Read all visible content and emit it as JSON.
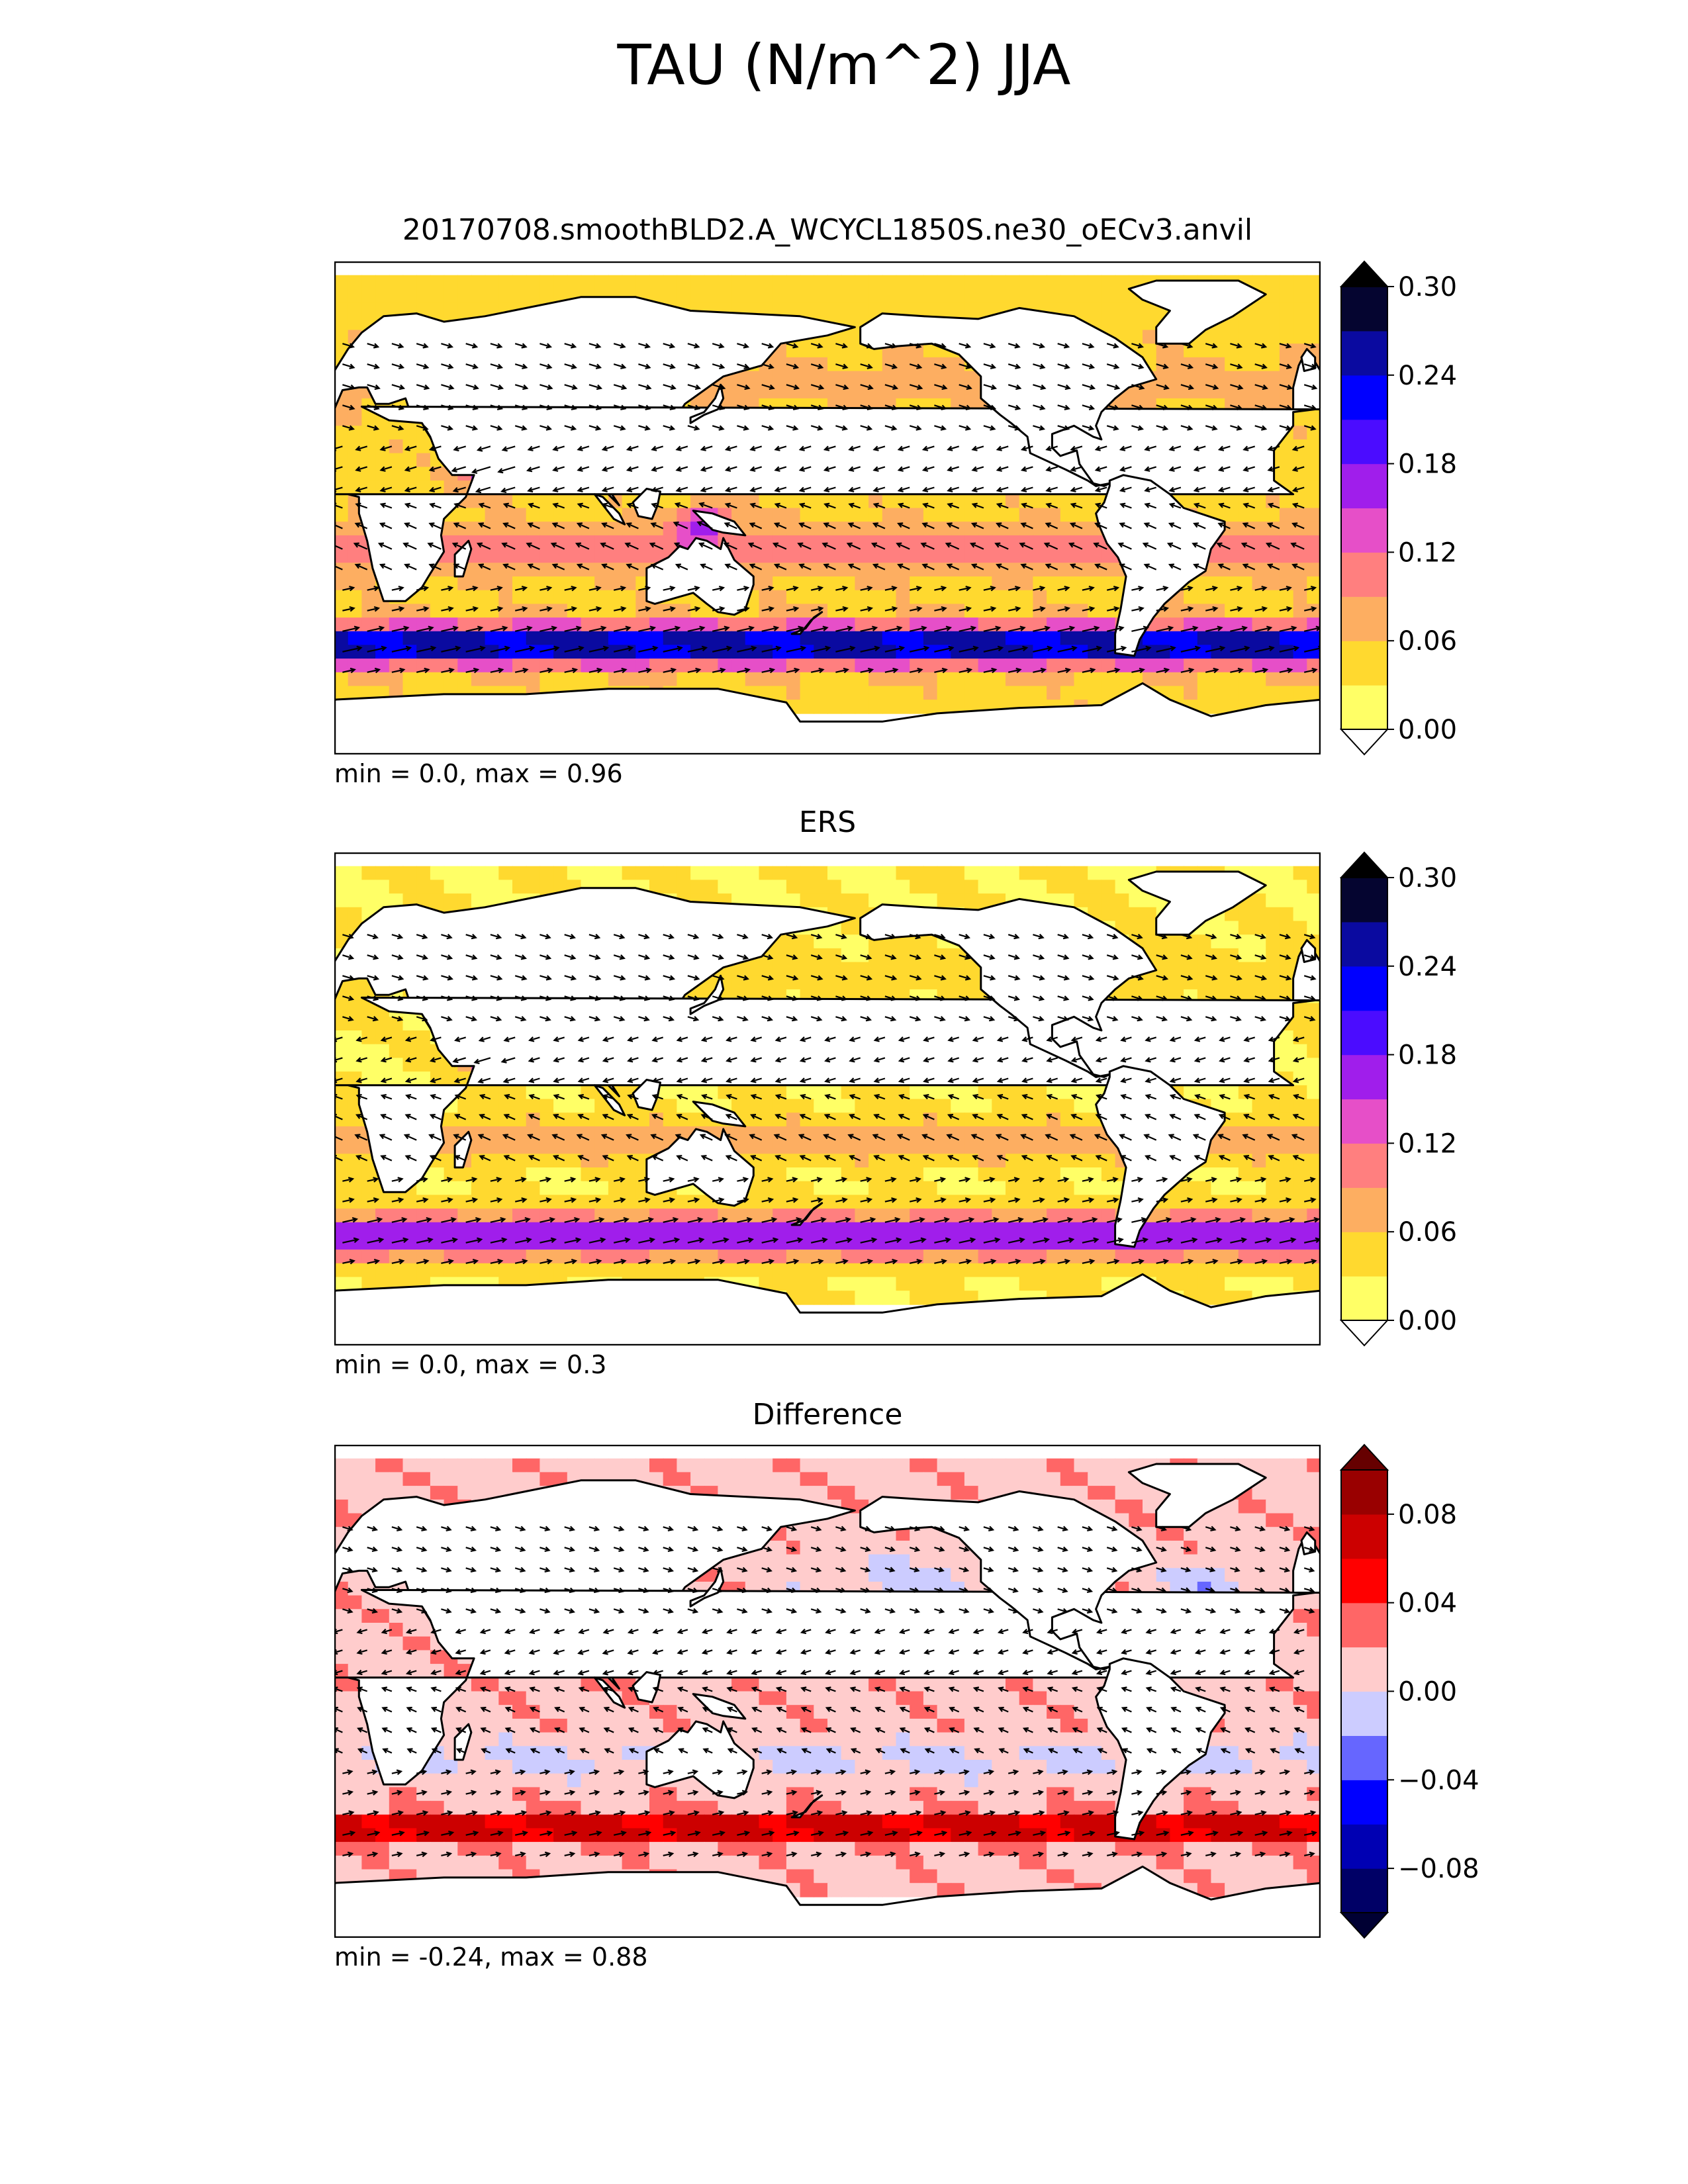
{
  "figure": {
    "title": "TAU (N/m^2) JJA"
  },
  "chart_data": [
    {
      "type": "heatmap",
      "panel": "test",
      "title": "20170708.smoothBLD2.A_WCYCL1850S.ne30_oECv3.anvil",
      "stats_text": "min = 0.0, max = 0.96",
      "min": 0.0,
      "max": 0.96,
      "colorbar": {
        "levels": [
          0.0,
          0.03,
          0.06,
          0.09,
          0.12,
          0.15,
          0.18,
          0.21,
          0.24,
          0.27,
          0.3
        ],
        "tick_labels": [
          "0.00",
          "0.06",
          "0.12",
          "0.18",
          "0.24",
          "0.30"
        ],
        "colors": [
          "#ffff66",
          "#ffd92f",
          "#fdae61",
          "#ff7f7f",
          "#e64fc8",
          "#a01eeb",
          "#4b0cff",
          "#0000ff",
          "#0a0aa0",
          "#050530"
        ],
        "extend_low_color": "#ffffff",
        "extend_high_color": "#000000"
      },
      "map": "world-coastlines-0-360-with-wind-stress-vectors"
    },
    {
      "type": "heatmap",
      "panel": "reference",
      "title": "ERS",
      "stats_text": "min = 0.0, max = 0.3",
      "min": 0.0,
      "max": 0.3,
      "colorbar": {
        "levels": [
          0.0,
          0.03,
          0.06,
          0.09,
          0.12,
          0.15,
          0.18,
          0.21,
          0.24,
          0.27,
          0.3
        ],
        "tick_labels": [
          "0.00",
          "0.06",
          "0.12",
          "0.18",
          "0.24",
          "0.30"
        ],
        "colors": [
          "#ffff66",
          "#ffd92f",
          "#fdae61",
          "#ff7f7f",
          "#e64fc8",
          "#a01eeb",
          "#4b0cff",
          "#0000ff",
          "#0a0aa0",
          "#050530"
        ],
        "extend_low_color": "#ffffff",
        "extend_high_color": "#000000"
      },
      "map": "world-coastlines-0-360-with-wind-stress-vectors"
    },
    {
      "type": "heatmap",
      "panel": "difference",
      "title": "Difference",
      "stats_text": "min = -0.24, max = 0.88",
      "min": -0.24,
      "max": 0.88,
      "colorbar": {
        "levels": [
          -0.1,
          -0.08,
          -0.06,
          -0.04,
          -0.02,
          0.0,
          0.02,
          0.04,
          0.06,
          0.08,
          0.1
        ],
        "tick_labels": [
          "−0.08",
          "−0.04",
          "0.00",
          "0.04",
          "0.08"
        ],
        "colors": [
          "#000066",
          "#0000b3",
          "#0000ff",
          "#6666ff",
          "#ccccff",
          "#ffcccc",
          "#ff6666",
          "#ff0000",
          "#cc0000",
          "#990000"
        ],
        "extend_low_color": "#000033",
        "extend_high_color": "#660000"
      },
      "map": "world-coastlines-0-360-with-wind-stress-vectors"
    }
  ]
}
